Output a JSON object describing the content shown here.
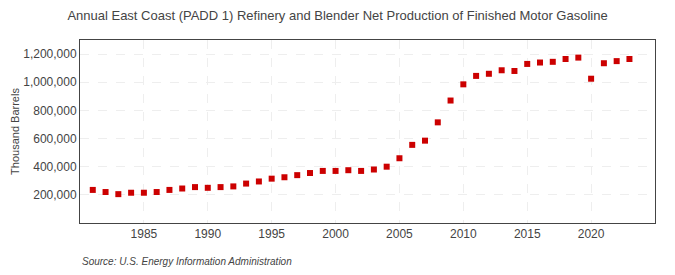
{
  "chart_data": {
    "type": "scatter",
    "title": "Annual East Coast (PADD 1) Refinery and Blender Net Production of Finished Motor Gasoline",
    "ylabel": "Thousand Barrels",
    "annotations": [
      "Source: U.S. Energy Information Administration"
    ],
    "x": [
      1981,
      1982,
      1983,
      1984,
      1985,
      1986,
      1987,
      1988,
      1989,
      1990,
      1991,
      1992,
      1993,
      1994,
      1995,
      1996,
      1997,
      1998,
      1999,
      2000,
      2001,
      2002,
      2003,
      2004,
      2005,
      2006,
      2007,
      2008,
      2009,
      2010,
      2011,
      2012,
      2013,
      2014,
      2015,
      2016,
      2017,
      2018,
      2019,
      2020,
      2021,
      2022,
      2023
    ],
    "values": [
      235000,
      220000,
      205000,
      215000,
      215000,
      220000,
      235000,
      245000,
      255000,
      250000,
      255000,
      260000,
      280000,
      295000,
      315000,
      325000,
      340000,
      355000,
      370000,
      370000,
      375000,
      370000,
      380000,
      400000,
      460000,
      555000,
      585000,
      715000,
      870000,
      985000,
      1045000,
      1060000,
      1085000,
      1080000,
      1130000,
      1140000,
      1145000,
      1165000,
      1175000,
      1025000,
      1135000,
      1150000,
      1165000
    ],
    "color": "#cc0000",
    "marker": "square",
    "xlim": [
      1980,
      2025
    ],
    "xticks": [
      1985,
      1990,
      1995,
      2000,
      2005,
      2010,
      2015,
      2020
    ],
    "ylim": [
      0,
      1300000
    ],
    "yticks": [
      {
        "value": 200000,
        "label": "200,000"
      },
      {
        "value": 400000,
        "label": "400,000"
      },
      {
        "value": 600000,
        "label": "600,000"
      },
      {
        "value": 800000,
        "label": "800,000"
      },
      {
        "value": 1000000,
        "label": "1,000,000"
      },
      {
        "value": 1200000,
        "label": "1,200,000"
      }
    ],
    "grid": true
  }
}
